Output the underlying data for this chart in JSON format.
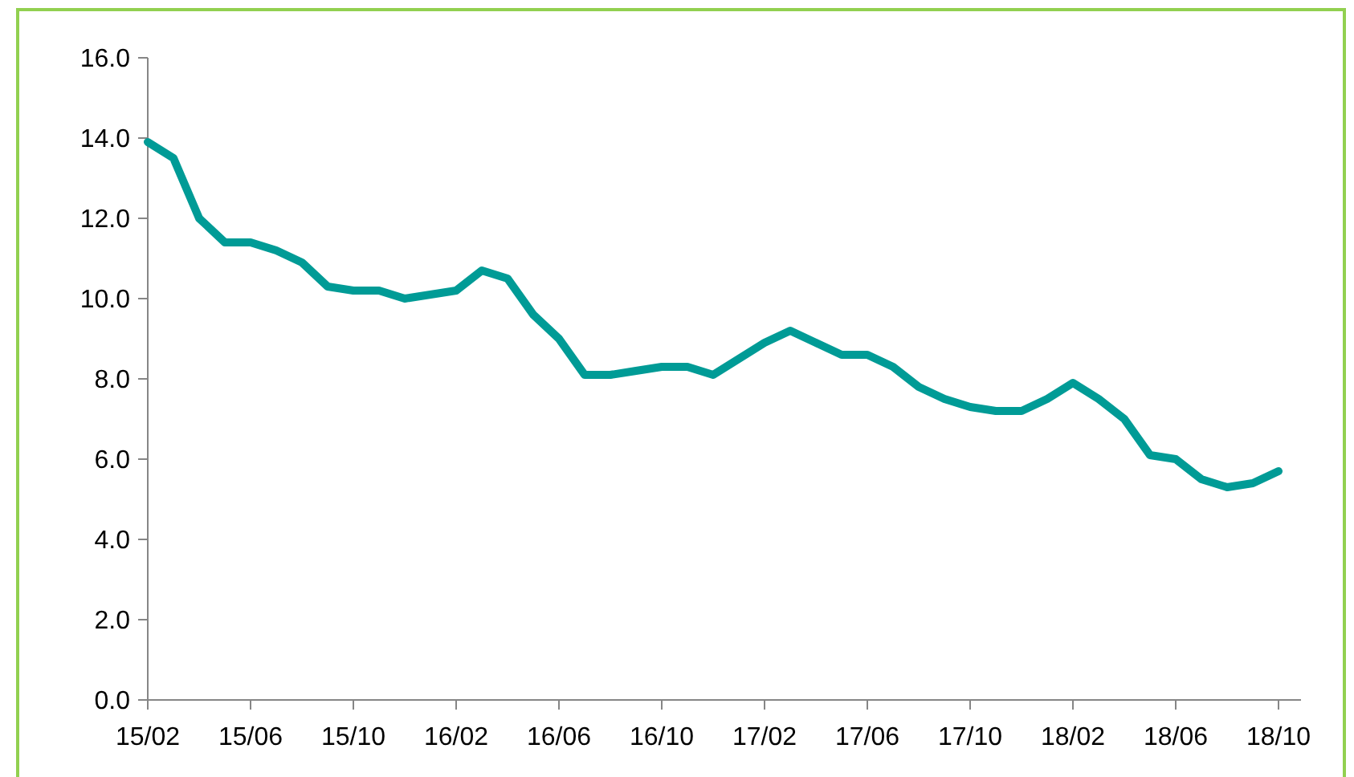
{
  "chart_data": {
    "type": "line",
    "categories": [
      "15/02",
      null,
      null,
      null,
      "15/06",
      null,
      null,
      null,
      "15/10",
      null,
      null,
      null,
      "16/02",
      null,
      null,
      null,
      "16/06",
      null,
      null,
      null,
      "16/10",
      null,
      null,
      null,
      "17/02",
      null,
      null,
      null,
      "17/06",
      null,
      null,
      null,
      "17/10",
      null,
      null,
      null,
      "18/02",
      null,
      null,
      null,
      "18/06",
      null,
      null,
      null,
      "18/10"
    ],
    "series": [
      {
        "color": "#009b96",
        "values": [
          13.9,
          13.5,
          12.0,
          11.4,
          11.4,
          11.2,
          10.9,
          10.3,
          10.2,
          10.2,
          10.0,
          10.1,
          10.2,
          10.7,
          10.5,
          9.6,
          9.0,
          8.1,
          8.1,
          8.2,
          8.3,
          8.3,
          8.1,
          8.5,
          8.9,
          9.2,
          8.9,
          8.6,
          8.6,
          8.3,
          7.8,
          7.5,
          7.3,
          7.2,
          7.2,
          7.5,
          7.9,
          7.5,
          7.0,
          6.1,
          6.0,
          5.5,
          5.3,
          5.4,
          5.7
        ]
      }
    ],
    "ylim": [
      0,
      16
    ],
    "yticks": [
      {
        "value": 0,
        "label": "0.0"
      },
      {
        "value": 2,
        "label": "2.0"
      },
      {
        "value": 4,
        "label": "4.0"
      },
      {
        "value": 6,
        "label": "6.0"
      },
      {
        "value": 8,
        "label": "8.0"
      },
      {
        "value": 10,
        "label": "10.0"
      },
      {
        "value": 12,
        "label": "12.0"
      },
      {
        "value": 14,
        "label": "14.0"
      },
      {
        "value": 16,
        "label": "16.0"
      }
    ],
    "grid": false,
    "marker": "none",
    "line_style": "solid"
  }
}
